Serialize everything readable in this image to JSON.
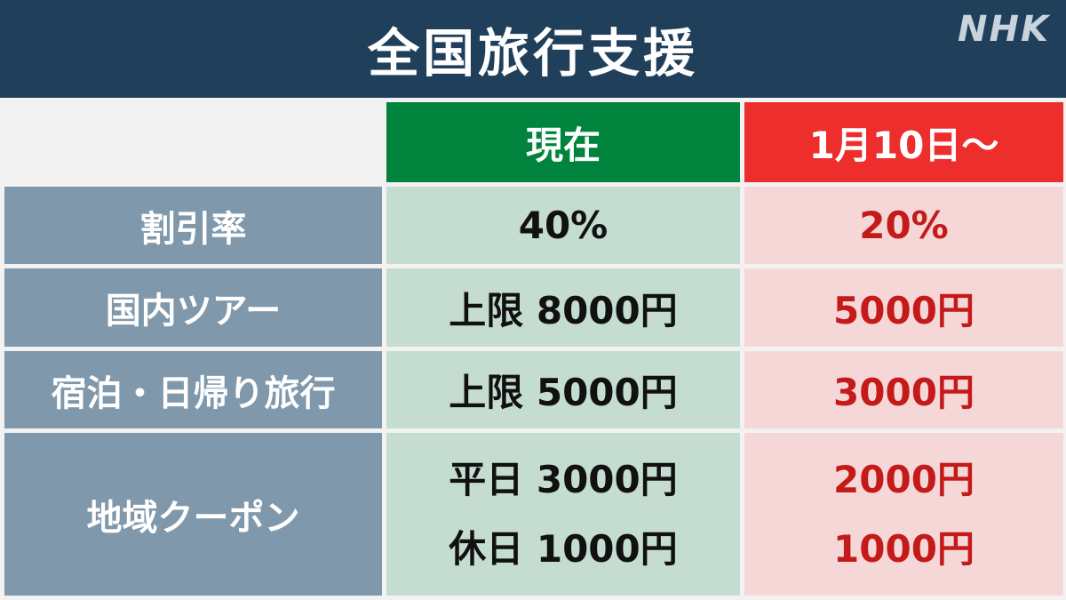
{
  "header": {
    "title": "全国旅行支援",
    "logo": "NHK"
  },
  "table": {
    "columns": [
      "現在",
      "1月10日〜"
    ],
    "rows": [
      {
        "label": "割引率",
        "current": [
          "40%"
        ],
        "new": [
          "20%"
        ]
      },
      {
        "label": "国内ツアー",
        "current": [
          "上限 8000円"
        ],
        "new": [
          "5000円"
        ]
      },
      {
        "label": "宿泊・日帰り旅行",
        "current": [
          "上限 5000円"
        ],
        "new": [
          "3000円"
        ]
      },
      {
        "label": "地域クーポン",
        "current": [
          "平日 3000円",
          "休日 1000円"
        ],
        "new": [
          "2000円",
          "1000円"
        ]
      }
    ]
  },
  "colors": {
    "title_bar": "#1f3f5a",
    "current_header": "#00843d",
    "new_header": "#ee2d2d",
    "new_text": "#c41a1a",
    "label_bg": "#7f98ab"
  }
}
